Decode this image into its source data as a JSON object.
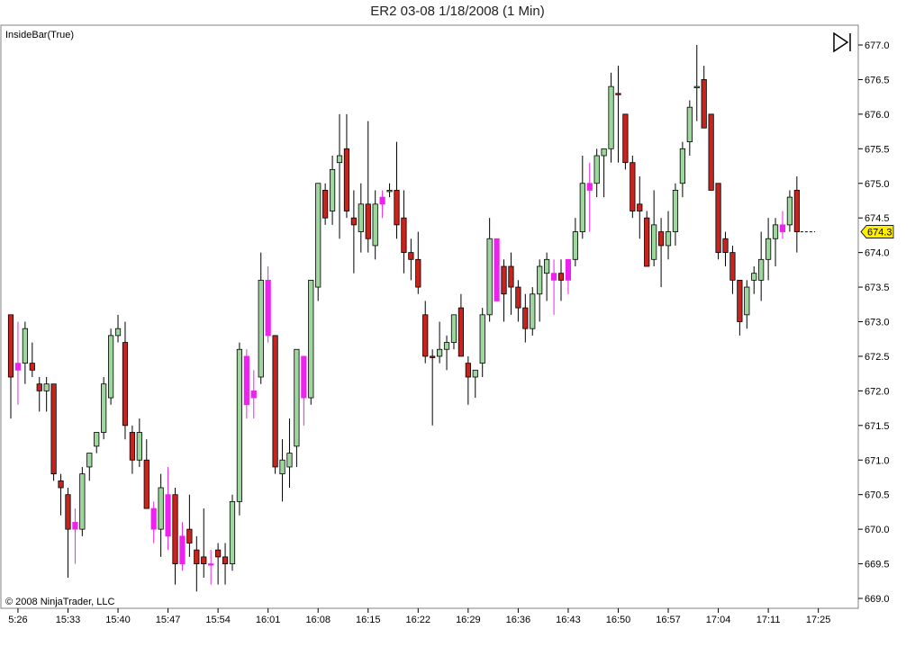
{
  "window": {
    "title": "ER2 03-08  1/18/2008 (1 Min)"
  },
  "indicator_label": "InsideBar(True)",
  "copyright": "© 2008 NinjaTrader, LLC",
  "price_marker": "674.3",
  "colors": {
    "up": "#9ed79e",
    "down": "#c8231c",
    "inside": "#ee22ee",
    "wick": "#000000",
    "marker": "#ffee00"
  },
  "icons": {
    "play_pause": "play-pause-icon"
  },
  "chart_data": {
    "type": "candlestick",
    "title": "ER2 03-08  1/18/2008 (1 Min)",
    "xlabel": "",
    "ylabel": "",
    "ylim": [
      669.0,
      677.0
    ],
    "y_ticks": [
      "669.0",
      "669.5",
      "670.0",
      "670.5",
      "671.0",
      "671.5",
      "672.0",
      "672.5",
      "673.0",
      "673.5",
      "674.0",
      "674.5",
      "675.0",
      "675.5",
      "676.0",
      "676.5",
      "677.0"
    ],
    "x_ticks": [
      "5:26",
      "15:33",
      "15:40",
      "15:47",
      "15:54",
      "16:01",
      "16:08",
      "16:15",
      "16:22",
      "16:29",
      "16:36",
      "16:43",
      "16:50",
      "16:57",
      "17:04",
      "17:11",
      "17:25"
    ],
    "last_price": 674.3,
    "candles": [
      {
        "o": 673.1,
        "h": 673.1,
        "l": 671.6,
        "c": 672.2,
        "t": "down"
      },
      {
        "o": 672.4,
        "h": 673.0,
        "l": 671.8,
        "c": 672.3,
        "t": "inside"
      },
      {
        "o": 672.4,
        "h": 673.0,
        "l": 672.1,
        "c": 672.9,
        "t": "up"
      },
      {
        "o": 672.4,
        "h": 672.7,
        "l": 672.2,
        "c": 672.3,
        "t": "down"
      },
      {
        "o": 672.1,
        "h": 672.2,
        "l": 671.7,
        "c": 672.0,
        "t": "down"
      },
      {
        "o": 672.0,
        "h": 672.2,
        "l": 671.7,
        "c": 672.1,
        "t": "up"
      },
      {
        "o": 672.1,
        "h": 672.1,
        "l": 670.7,
        "c": 670.8,
        "t": "down"
      },
      {
        "o": 670.7,
        "h": 670.8,
        "l": 670.2,
        "c": 670.6,
        "t": "down"
      },
      {
        "o": 670.5,
        "h": 670.6,
        "l": 669.3,
        "c": 670.0,
        "t": "down"
      },
      {
        "o": 670.1,
        "h": 670.3,
        "l": 669.5,
        "c": 670.0,
        "t": "inside"
      },
      {
        "o": 670.0,
        "h": 670.9,
        "l": 669.9,
        "c": 670.8,
        "t": "up"
      },
      {
        "o": 670.9,
        "h": 671.1,
        "l": 670.7,
        "c": 671.1,
        "t": "up"
      },
      {
        "o": 671.2,
        "h": 671.4,
        "l": 671.1,
        "c": 671.4,
        "t": "up"
      },
      {
        "o": 671.4,
        "h": 672.2,
        "l": 671.3,
        "c": 672.1,
        "t": "up"
      },
      {
        "o": 671.9,
        "h": 672.9,
        "l": 671.8,
        "c": 672.8,
        "t": "up"
      },
      {
        "o": 672.8,
        "h": 673.1,
        "l": 672.7,
        "c": 672.9,
        "t": "up"
      },
      {
        "o": 672.7,
        "h": 673.0,
        "l": 671.3,
        "c": 671.5,
        "t": "down"
      },
      {
        "o": 671.4,
        "h": 671.5,
        "l": 670.8,
        "c": 671.0,
        "t": "down"
      },
      {
        "o": 671.0,
        "h": 671.6,
        "l": 670.9,
        "c": 671.4,
        "t": "up"
      },
      {
        "o": 671.0,
        "h": 671.3,
        "l": 670.3,
        "c": 670.3,
        "t": "down"
      },
      {
        "o": 670.3,
        "h": 670.4,
        "l": 669.8,
        "c": 670.0,
        "t": "inside"
      },
      {
        "o": 670.0,
        "h": 670.8,
        "l": 669.6,
        "c": 670.6,
        "t": "up"
      },
      {
        "o": 670.5,
        "h": 670.9,
        "l": 669.7,
        "c": 669.9,
        "t": "inside"
      },
      {
        "o": 670.5,
        "h": 670.6,
        "l": 669.2,
        "c": 669.5,
        "t": "down"
      },
      {
        "o": 669.9,
        "h": 670.1,
        "l": 669.4,
        "c": 669.5,
        "t": "inside"
      },
      {
        "o": 670.0,
        "h": 670.5,
        "l": 669.6,
        "c": 669.8,
        "t": "down"
      },
      {
        "o": 669.7,
        "h": 669.9,
        "l": 669.1,
        "c": 669.5,
        "t": "down"
      },
      {
        "o": 669.6,
        "h": 670.3,
        "l": 669.3,
        "c": 669.5,
        "t": "down"
      },
      {
        "o": 669.5,
        "h": 669.7,
        "l": 669.2,
        "c": 669.5,
        "t": "inside"
      },
      {
        "o": 669.7,
        "h": 669.8,
        "l": 669.2,
        "c": 669.6,
        "t": "down"
      },
      {
        "o": 669.6,
        "h": 669.8,
        "l": 669.2,
        "c": 669.5,
        "t": "down"
      },
      {
        "o": 669.5,
        "h": 670.5,
        "l": 669.4,
        "c": 670.4,
        "t": "up"
      },
      {
        "o": 670.4,
        "h": 672.7,
        "l": 670.2,
        "c": 672.6,
        "t": "up"
      },
      {
        "o": 672.5,
        "h": 672.6,
        "l": 671.6,
        "c": 671.8,
        "t": "inside"
      },
      {
        "o": 672.0,
        "h": 672.3,
        "l": 671.6,
        "c": 671.9,
        "t": "inside"
      },
      {
        "o": 672.2,
        "h": 674.0,
        "l": 672.1,
        "c": 673.6,
        "t": "up"
      },
      {
        "o": 673.6,
        "h": 673.8,
        "l": 672.7,
        "c": 672.8,
        "t": "inside"
      },
      {
        "o": 672.8,
        "h": 672.8,
        "l": 670.8,
        "c": 670.9,
        "t": "down"
      },
      {
        "o": 670.8,
        "h": 671.3,
        "l": 670.4,
        "c": 671.0,
        "t": "up"
      },
      {
        "o": 670.9,
        "h": 671.6,
        "l": 670.6,
        "c": 671.1,
        "t": "up"
      },
      {
        "o": 671.2,
        "h": 672.6,
        "l": 670.9,
        "c": 672.6,
        "t": "up"
      },
      {
        "o": 672.5,
        "h": 672.5,
        "l": 671.5,
        "c": 671.9,
        "t": "inside"
      },
      {
        "o": 671.9,
        "h": 673.6,
        "l": 671.8,
        "c": 673.6,
        "t": "up"
      },
      {
        "o": 673.5,
        "h": 675.0,
        "l": 673.3,
        "c": 675.0,
        "t": "up"
      },
      {
        "o": 674.9,
        "h": 675.0,
        "l": 674.4,
        "c": 674.5,
        "t": "down"
      },
      {
        "o": 674.6,
        "h": 675.4,
        "l": 674.4,
        "c": 675.2,
        "t": "up"
      },
      {
        "o": 675.3,
        "h": 676.0,
        "l": 674.2,
        "c": 675.4,
        "t": "up"
      },
      {
        "o": 675.5,
        "h": 676.0,
        "l": 674.5,
        "c": 674.6,
        "t": "down"
      },
      {
        "o": 674.5,
        "h": 674.9,
        "l": 673.7,
        "c": 674.4,
        "t": "down"
      },
      {
        "o": 674.3,
        "h": 675.0,
        "l": 674.0,
        "c": 674.7,
        "t": "up"
      },
      {
        "o": 674.7,
        "h": 675.9,
        "l": 674.0,
        "c": 674.2,
        "t": "down"
      },
      {
        "o": 674.1,
        "h": 674.9,
        "l": 673.9,
        "c": 674.7,
        "t": "up"
      },
      {
        "o": 674.7,
        "h": 674.9,
        "l": 674.5,
        "c": 674.8,
        "t": "inside"
      },
      {
        "o": 674.9,
        "h": 675.0,
        "l": 674.8,
        "c": 674.9,
        "t": "up"
      },
      {
        "o": 674.9,
        "h": 675.6,
        "l": 674.2,
        "c": 674.4,
        "t": "down"
      },
      {
        "o": 674.5,
        "h": 674.9,
        "l": 673.7,
        "c": 674.0,
        "t": "down"
      },
      {
        "o": 674.0,
        "h": 674.2,
        "l": 673.6,
        "c": 673.9,
        "t": "down"
      },
      {
        "o": 673.9,
        "h": 674.3,
        "l": 673.4,
        "c": 673.5,
        "t": "down"
      },
      {
        "o": 673.1,
        "h": 673.3,
        "l": 672.4,
        "c": 672.5,
        "t": "down"
      },
      {
        "o": 672.5,
        "h": 672.6,
        "l": 671.5,
        "c": 672.5,
        "t": "down"
      },
      {
        "o": 672.5,
        "h": 673.0,
        "l": 672.4,
        "c": 672.6,
        "t": "up"
      },
      {
        "o": 672.6,
        "h": 672.8,
        "l": 672.3,
        "c": 672.7,
        "t": "up"
      },
      {
        "o": 672.7,
        "h": 673.1,
        "l": 672.6,
        "c": 673.1,
        "t": "up"
      },
      {
        "o": 673.2,
        "h": 673.4,
        "l": 672.5,
        "c": 672.5,
        "t": "down"
      },
      {
        "o": 672.4,
        "h": 672.5,
        "l": 671.8,
        "c": 672.2,
        "t": "down"
      },
      {
        "o": 672.2,
        "h": 672.3,
        "l": 671.9,
        "c": 672.3,
        "t": "up"
      },
      {
        "o": 672.4,
        "h": 673.2,
        "l": 672.2,
        "c": 673.1,
        "t": "up"
      },
      {
        "o": 673.1,
        "h": 674.5,
        "l": 673.0,
        "c": 674.2,
        "t": "up"
      },
      {
        "o": 674.2,
        "h": 674.2,
        "l": 673.3,
        "c": 673.3,
        "t": "inside"
      },
      {
        "o": 673.8,
        "h": 673.9,
        "l": 673.0,
        "c": 673.4,
        "t": "down"
      },
      {
        "o": 673.8,
        "h": 674.0,
        "l": 673.1,
        "c": 673.5,
        "t": "down"
      },
      {
        "o": 673.5,
        "h": 673.6,
        "l": 673.0,
        "c": 673.2,
        "t": "down"
      },
      {
        "o": 673.2,
        "h": 673.4,
        "l": 672.7,
        "c": 672.9,
        "t": "down"
      },
      {
        "o": 672.9,
        "h": 673.5,
        "l": 672.8,
        "c": 673.4,
        "t": "up"
      },
      {
        "o": 673.4,
        "h": 673.9,
        "l": 673.0,
        "c": 673.8,
        "t": "up"
      },
      {
        "o": 673.7,
        "h": 674.0,
        "l": 673.3,
        "c": 673.9,
        "t": "up"
      },
      {
        "o": 673.7,
        "h": 673.9,
        "l": 673.1,
        "c": 673.6,
        "t": "inside"
      },
      {
        "o": 673.7,
        "h": 673.9,
        "l": 673.3,
        "c": 673.6,
        "t": "down"
      },
      {
        "o": 673.6,
        "h": 673.9,
        "l": 673.4,
        "c": 673.9,
        "t": "inside"
      },
      {
        "o": 673.9,
        "h": 674.5,
        "l": 673.8,
        "c": 674.3,
        "t": "up"
      },
      {
        "o": 674.3,
        "h": 675.4,
        "l": 674.2,
        "c": 675.0,
        "t": "up"
      },
      {
        "o": 674.9,
        "h": 675.3,
        "l": 674.3,
        "c": 675.0,
        "t": "inside"
      },
      {
        "o": 675.0,
        "h": 675.5,
        "l": 674.8,
        "c": 675.4,
        "t": "up"
      },
      {
        "o": 675.4,
        "h": 675.5,
        "l": 674.8,
        "c": 675.5,
        "t": "up"
      },
      {
        "o": 675.5,
        "h": 676.6,
        "l": 675.3,
        "c": 676.4,
        "t": "up"
      },
      {
        "o": 676.3,
        "h": 676.7,
        "l": 675.3,
        "c": 676.3,
        "t": "down"
      },
      {
        "o": 676.0,
        "h": 676.0,
        "l": 675.2,
        "c": 675.3,
        "t": "down"
      },
      {
        "o": 675.3,
        "h": 675.4,
        "l": 674.5,
        "c": 674.6,
        "t": "down"
      },
      {
        "o": 674.7,
        "h": 675.1,
        "l": 674.2,
        "c": 674.6,
        "t": "down"
      },
      {
        "o": 674.5,
        "h": 674.6,
        "l": 673.8,
        "c": 673.8,
        "t": "down"
      },
      {
        "o": 673.9,
        "h": 674.9,
        "l": 673.8,
        "c": 674.4,
        "t": "up"
      },
      {
        "o": 674.3,
        "h": 674.5,
        "l": 673.5,
        "c": 674.1,
        "t": "down"
      },
      {
        "o": 674.1,
        "h": 674.6,
        "l": 673.9,
        "c": 674.3,
        "t": "up"
      },
      {
        "o": 674.3,
        "h": 675.0,
        "l": 674.1,
        "c": 674.9,
        "t": "up"
      },
      {
        "o": 675.0,
        "h": 675.6,
        "l": 674.8,
        "c": 675.5,
        "t": "up"
      },
      {
        "o": 675.6,
        "h": 676.2,
        "l": 675.4,
        "c": 676.1,
        "t": "up"
      },
      {
        "o": 676.4,
        "h": 677.0,
        "l": 675.9,
        "c": 676.4,
        "t": "up"
      },
      {
        "o": 676.5,
        "h": 676.7,
        "l": 675.8,
        "c": 675.8,
        "t": "down"
      },
      {
        "o": 676.0,
        "h": 676.0,
        "l": 674.9,
        "c": 674.9,
        "t": "down"
      },
      {
        "o": 675.0,
        "h": 675.0,
        "l": 673.9,
        "c": 674.0,
        "t": "down"
      },
      {
        "o": 674.2,
        "h": 674.3,
        "l": 673.8,
        "c": 674.0,
        "t": "down"
      },
      {
        "o": 674.0,
        "h": 674.1,
        "l": 673.4,
        "c": 673.6,
        "t": "down"
      },
      {
        "o": 673.6,
        "h": 673.6,
        "l": 672.8,
        "c": 673.0,
        "t": "down"
      },
      {
        "o": 673.1,
        "h": 673.6,
        "l": 672.9,
        "c": 673.5,
        "t": "up"
      },
      {
        "o": 673.6,
        "h": 673.8,
        "l": 673.4,
        "c": 673.7,
        "t": "up"
      },
      {
        "o": 673.6,
        "h": 674.3,
        "l": 673.3,
        "c": 673.9,
        "t": "up"
      },
      {
        "o": 673.9,
        "h": 674.5,
        "l": 673.6,
        "c": 674.2,
        "t": "up"
      },
      {
        "o": 674.2,
        "h": 674.5,
        "l": 673.8,
        "c": 674.4,
        "t": "up"
      },
      {
        "o": 674.4,
        "h": 674.6,
        "l": 674.2,
        "c": 674.3,
        "t": "inside"
      },
      {
        "o": 674.4,
        "h": 674.9,
        "l": 674.3,
        "c": 674.8,
        "t": "up"
      },
      {
        "o": 674.9,
        "h": 675.1,
        "l": 674.0,
        "c": 674.3,
        "t": "down"
      }
    ]
  }
}
